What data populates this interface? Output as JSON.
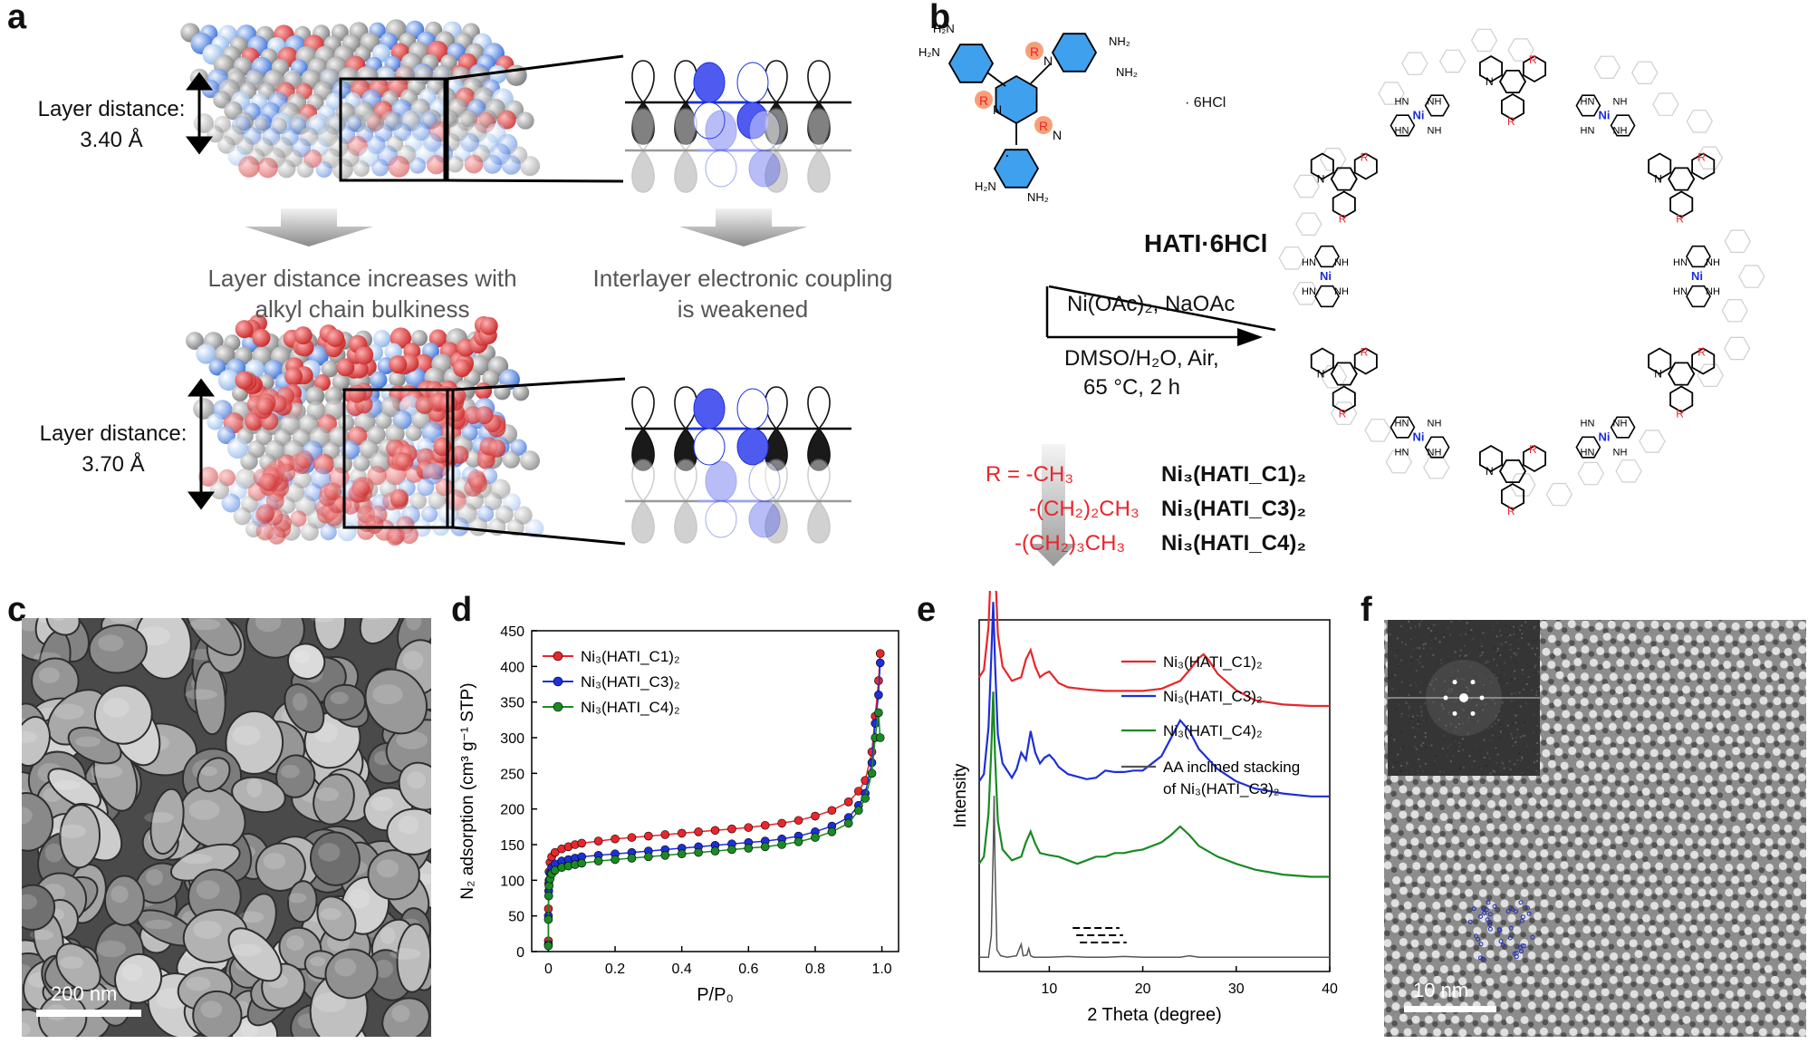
{
  "panels": {
    "a": "a",
    "b": "b",
    "c": "c",
    "d": "d",
    "e": "e",
    "f": "f"
  },
  "panel_a": {
    "top_label_line1": "Layer distance:",
    "top_label_line2": "3.40 Å",
    "bottom_label_line1": "Layer distance:",
    "bottom_label_line2": "3.70 Å",
    "caption_left_line1": "Layer distance increases with",
    "caption_left_line2": "alkyl chain bulkiness",
    "caption_right_line1": "Interlayer electronic coupling",
    "caption_right_line2": "is weakened"
  },
  "panel_b": {
    "monomer_name": "HATI·6HCl",
    "salt_label": "· 6HCl",
    "reagent_line1": "Ni(OAc)₂, NaOAc",
    "reagent_line2": "DMSO/H₂O, Air,",
    "reagent_line3": "65 °C, 2 h",
    "r_groups": [
      {
        "r": "R = -CH₃",
        "product": "Ni₃(HATI_C1)₂"
      },
      {
        "r": "-(CH₂)₂CH₃",
        "product": "Ni₃(HATI_C3)₂"
      },
      {
        "r": "-(CH₂)₃CH₃",
        "product": "Ni₃(HATI_C4)₂"
      }
    ],
    "atom_labels": {
      "R": "R",
      "N": "N",
      "NH2": "NH₂",
      "H2N": "H₂N",
      "Ni": "Ni",
      "NH": "NH",
      "HN": "HN"
    }
  },
  "panel_c": {
    "scale_bar": "200 nm"
  },
  "panel_f": {
    "scale_bar": "10 nm"
  },
  "colors": {
    "red": "#e8262b",
    "blue": "#1c2fd9",
    "green": "#1a8a22",
    "gray": "#555555"
  },
  "chart_data": [
    {
      "type": "scatter",
      "panel": "d",
      "xlabel": "P/P₀",
      "ylabel": "N₂ adsorption (cm³ g⁻¹ STP)",
      "xlim": [
        -0.05,
        1.05
      ],
      "ylim": [
        0,
        450
      ],
      "xticks": [
        0,
        0.2,
        0.4,
        0.6,
        0.8,
        1.0
      ],
      "xticklabels": [
        "0",
        "0.2",
        "0.4",
        "0.6",
        "0.8",
        "1.0"
      ],
      "yticks": [
        0,
        50,
        100,
        150,
        200,
        250,
        300,
        350,
        400,
        450
      ],
      "legend_position": "top-left",
      "series": [
        {
          "name": "Ni₃(HATI_C1)₂",
          "color": "#e8262b",
          "x": [
            0.0,
            0.0,
            0.001,
            0.002,
            0.005,
            0.01,
            0.02,
            0.04,
            0.06,
            0.08,
            0.1,
            0.15,
            0.2,
            0.25,
            0.3,
            0.35,
            0.4,
            0.45,
            0.5,
            0.55,
            0.6,
            0.65,
            0.7,
            0.75,
            0.8,
            0.85,
            0.9,
            0.93,
            0.95,
            0.97,
            0.98,
            0.99,
            0.995
          ],
          "y": [
            15,
            60,
            95,
            112,
            125,
            133,
            139,
            144,
            147,
            150,
            152,
            155,
            158,
            160,
            162,
            164,
            166,
            168,
            170,
            172,
            174,
            177,
            180,
            184,
            190,
            198,
            210,
            225,
            240,
            280,
            330,
            380,
            418
          ]
        },
        {
          "name": "Ni₃(HATI_C3)₂",
          "color": "#1c2fd9",
          "x": [
            0.0,
            0.0,
            0.001,
            0.002,
            0.005,
            0.01,
            0.02,
            0.04,
            0.06,
            0.08,
            0.1,
            0.15,
            0.2,
            0.25,
            0.3,
            0.35,
            0.4,
            0.45,
            0.5,
            0.55,
            0.6,
            0.65,
            0.7,
            0.75,
            0.8,
            0.85,
            0.9,
            0.93,
            0.95,
            0.97,
            0.98,
            0.99,
            0.995
          ],
          "y": [
            10,
            50,
            85,
            100,
            110,
            118,
            123,
            127,
            129,
            131,
            133,
            135,
            137,
            139,
            141,
            143,
            145,
            147,
            149,
            151,
            153,
            155,
            158,
            162,
            168,
            176,
            188,
            205,
            222,
            265,
            320,
            360,
            405
          ]
        },
        {
          "name": "Ni₃(HATI_C4)₂",
          "color": "#1a8a22",
          "x": [
            0.0,
            0.0,
            0.001,
            0.002,
            0.005,
            0.01,
            0.02,
            0.04,
            0.06,
            0.08,
            0.1,
            0.15,
            0.2,
            0.25,
            0.3,
            0.35,
            0.4,
            0.45,
            0.5,
            0.55,
            0.6,
            0.65,
            0.7,
            0.75,
            0.8,
            0.85,
            0.9,
            0.93,
            0.95,
            0.97,
            0.98,
            0.99,
            0.995
          ],
          "y": [
            8,
            45,
            78,
            92,
            102,
            109,
            114,
            118,
            120,
            122,
            124,
            127,
            129,
            131,
            133,
            135,
            137,
            139,
            141,
            143,
            145,
            147,
            150,
            154,
            160,
            168,
            180,
            198,
            215,
            250,
            300,
            335,
            300
          ]
        }
      ]
    },
    {
      "type": "line",
      "panel": "e",
      "xlabel": "2 Theta (degree)",
      "ylabel": "Intensity",
      "xlim": [
        2.5,
        40
      ],
      "xticks": [
        10,
        20,
        30,
        40
      ],
      "yticks_shown": false,
      "legend_position": "top-right",
      "series": [
        {
          "name": "Ni₃(HATI_C1)₂",
          "color": "#e8262b",
          "offset": 3.3,
          "x": [
            2.5,
            3,
            3.5,
            3.8,
            4,
            4.2,
            4.5,
            5,
            6,
            7,
            7.5,
            8,
            8.5,
            9,
            9.5,
            10,
            10.5,
            11,
            12,
            14,
            16,
            18,
            20,
            22,
            24,
            25,
            26,
            26.5,
            27,
            28,
            30,
            32,
            35,
            38,
            40
          ],
          "y": [
            0.6,
            0.7,
            1.3,
            2.3,
            3.1,
            2.2,
            1.2,
            0.75,
            0.55,
            0.6,
            0.85,
            0.98,
            0.75,
            0.6,
            0.65,
            0.68,
            0.6,
            0.52,
            0.46,
            0.43,
            0.41,
            0.41,
            0.41,
            0.44,
            0.55,
            0.7,
            0.87,
            0.92,
            0.85,
            0.65,
            0.42,
            0.28,
            0.22,
            0.2,
            0.2
          ]
        },
        {
          "name": "Ni₃(HATI_C3)₂",
          "color": "#1c2fd9",
          "offset": 2.2,
          "x": [
            2.5,
            3,
            3.5,
            3.8,
            4,
            4.2,
            4.5,
            5,
            6,
            6.5,
            7,
            7.5,
            8,
            8.5,
            9,
            9.5,
            10,
            10.5,
            11,
            12,
            14,
            15,
            16,
            17,
            18,
            19,
            20,
            22,
            23,
            24,
            25,
            26,
            28,
            30,
            32,
            35,
            38,
            40
          ],
          "y": [
            0.25,
            0.35,
            1.0,
            2.0,
            2.75,
            1.9,
            0.9,
            0.5,
            0.3,
            0.42,
            0.65,
            0.55,
            0.95,
            0.65,
            0.5,
            0.58,
            0.62,
            0.55,
            0.45,
            0.35,
            0.28,
            0.3,
            0.4,
            0.38,
            0.38,
            0.4,
            0.4,
            0.6,
            0.85,
            1.1,
            0.95,
            0.7,
            0.42,
            0.25,
            0.15,
            0.08,
            0.04,
            0.04
          ]
        },
        {
          "name": "Ni₃(HATI_C4)₂",
          "color": "#1a8a22",
          "offset": 1.1,
          "x": [
            2.5,
            3,
            3.5,
            3.8,
            4,
            4.2,
            4.5,
            5,
            6,
            7,
            7.5,
            8,
            8.5,
            9,
            10,
            11,
            12,
            13,
            14,
            15,
            16,
            17,
            18,
            19,
            20,
            22,
            23,
            24,
            25,
            26,
            28,
            30,
            32,
            35,
            38,
            40
          ],
          "y": [
            0.2,
            0.3,
            0.9,
            1.8,
            2.6,
            1.7,
            0.8,
            0.4,
            0.25,
            0.3,
            0.5,
            0.65,
            0.48,
            0.35,
            0.32,
            0.3,
            0.25,
            0.2,
            0.25,
            0.3,
            0.3,
            0.35,
            0.35,
            0.38,
            0.4,
            0.5,
            0.6,
            0.72,
            0.6,
            0.45,
            0.3,
            0.2,
            0.12,
            0.05,
            0.02,
            0.02
          ]
        },
        {
          "name": "AA inclined stacking of Ni₃(HATI_C3)₂",
          "color": "#555555",
          "offset": 0,
          "x": [
            2.5,
            3.5,
            3.8,
            4,
            4.1,
            4.2,
            4.4,
            4.8,
            5.5,
            6.5,
            6.8,
            7,
            7.2,
            7.6,
            7.8,
            8,
            8.3,
            10,
            12,
            14,
            16,
            18,
            20,
            22,
            24,
            25,
            26,
            30,
            35,
            40
          ],
          "y": [
            0,
            0,
            0.3,
            1.5,
            2.25,
            1.3,
            0.1,
            0.02,
            0,
            0.02,
            0.12,
            0.18,
            0.02,
            0.03,
            0.12,
            0.02,
            0,
            0,
            0.01,
            0,
            0,
            0.01,
            0,
            0,
            0,
            0.02,
            0,
            0,
            0,
            0
          ]
        }
      ]
    }
  ]
}
